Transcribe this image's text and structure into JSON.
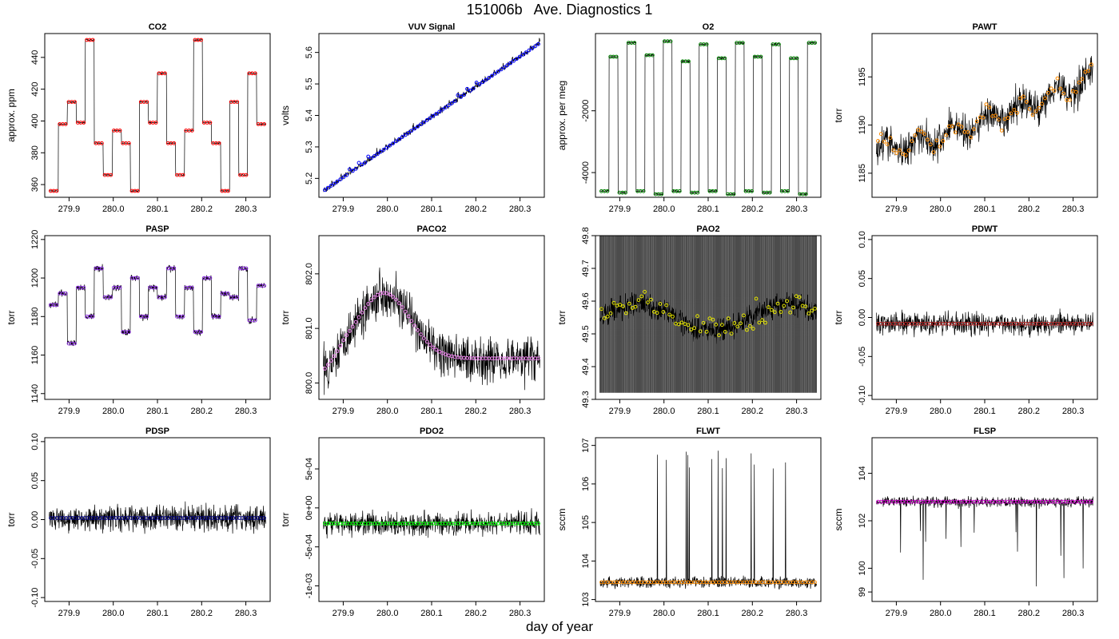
{
  "figure": {
    "title": "151006b   Ave. Diagnostics 1",
    "xlabel": "day of year"
  },
  "chart_data": [
    {
      "type": "line",
      "title": "CO2",
      "ylabel": "approx. ppm",
      "xlim": [
        279.845,
        280.355
      ],
      "ylim": [
        352,
        455
      ],
      "yticks": [
        {
          "v": 360,
          "label": "360"
        },
        {
          "v": 380,
          "label": "380"
        },
        {
          "v": 400,
          "label": "400"
        },
        {
          "v": 420,
          "label": "420"
        },
        {
          "v": 440,
          "label": "440"
        }
      ],
      "xticks": [
        279.9,
        280.0,
        280.1,
        280.2,
        280.3
      ],
      "xticklabels": [
        "279.9",
        "280.0",
        "280.1",
        "280.2",
        "280.3"
      ],
      "marker_color": "#ff0000",
      "pattern": "steps",
      "levels": [
        356,
        398,
        412,
        399,
        451,
        386,
        366,
        394,
        386,
        356,
        412,
        399,
        430,
        386,
        366,
        394,
        451,
        399,
        386,
        356,
        412,
        366,
        430,
        398
      ],
      "noise": 0.3,
      "spikes": 0
    },
    {
      "type": "line",
      "title": "VUV Signal",
      "ylabel": "volts",
      "xlim": [
        279.845,
        280.355
      ],
      "ylim": [
        5.14,
        5.66
      ],
      "yticks": [
        {
          "v": 5.2,
          "label": "5.2"
        },
        {
          "v": 5.3,
          "label": "5.3"
        },
        {
          "v": 5.4,
          "label": "5.4"
        },
        {
          "v": 5.5,
          "label": "5.5"
        },
        {
          "v": 5.6,
          "label": "5.6"
        }
      ],
      "xticks": [
        279.9,
        280.0,
        280.1,
        280.2,
        280.3
      ],
      "xticklabels": [
        "279.9",
        "280.0",
        "280.1",
        "280.2",
        "280.3"
      ],
      "marker_color": "#0000ff",
      "pattern": "linear",
      "start": 5.16,
      "end": 5.63,
      "noise": 0.006,
      "spikes": 0
    },
    {
      "type": "line",
      "title": "O2",
      "ylabel": "approx. per meg",
      "xlim": [
        279.845,
        280.355
      ],
      "ylim": [
        -4800,
        500
      ],
      "yticks": [
        {
          "v": -4000,
          "label": "-4000"
        },
        {
          "v": -2000,
          "label": "-2000"
        }
      ],
      "xticks": [
        279.9,
        280.0,
        280.1,
        280.2,
        280.3
      ],
      "xticklabels": [
        "279.9",
        "280.0",
        "280.1",
        "280.2",
        "280.3"
      ],
      "marker_color": "#008000",
      "pattern": "steps",
      "levels": [
        -4600,
        -250,
        -4650,
        200,
        -4600,
        -200,
        -4700,
        250,
        -4600,
        -400,
        -4650,
        150,
        -4600,
        -300,
        -4700,
        200,
        -4600,
        -250,
        -4650,
        150,
        -4600,
        -300,
        -4700,
        200
      ],
      "noise": 20,
      "spikes": 0
    },
    {
      "type": "line",
      "title": "PAWT",
      "ylabel": "torr",
      "xlim": [
        279.845,
        280.355
      ],
      "ylim": [
        1182.5,
        1199.5
      ],
      "yticks": [
        {
          "v": 1185,
          "label": "1185"
        },
        {
          "v": 1190,
          "label": "1190"
        },
        {
          "v": 1195,
          "label": "1195"
        }
      ],
      "xticks": [
        279.9,
        280.0,
        280.1,
        280.2,
        280.3
      ],
      "xticklabels": [
        "279.9",
        "280.0",
        "280.1",
        "280.2",
        "280.3"
      ],
      "marker_color": "#ff8c00",
      "pattern": "trend",
      "start": 1187.5,
      "end": 1195,
      "noise": 1.3,
      "spikes": 0
    },
    {
      "type": "line",
      "title": "PASP",
      "ylabel": "torr",
      "xlim": [
        279.845,
        280.355
      ],
      "ylim": [
        1137,
        1222
      ],
      "yticks": [
        {
          "v": 1140,
          "label": "1140"
        },
        {
          "v": 1160,
          "label": "1160"
        },
        {
          "v": 1180,
          "label": "1180"
        },
        {
          "v": 1200,
          "label": "1200"
        },
        {
          "v": 1220,
          "label": "1220"
        }
      ],
      "xticks": [
        279.9,
        280.0,
        280.1,
        280.2,
        280.3
      ],
      "xticklabels": [
        "279.9",
        "280.0",
        "280.1",
        "280.2",
        "280.3"
      ],
      "marker_color": "#8a2be2",
      "pattern": "steps",
      "levels": [
        1186,
        1192,
        1166,
        1195,
        1180,
        1205,
        1190,
        1195,
        1172,
        1200,
        1180,
        1195,
        1190,
        1205,
        1180,
        1195,
        1172,
        1200,
        1180,
        1192,
        1190,
        1205,
        1178,
        1196
      ],
      "noise": 1.2,
      "spikes": 0
    },
    {
      "type": "line",
      "title": "PACO2",
      "ylabel": "torr",
      "xlim": [
        279.845,
        280.355
      ],
      "ylim": [
        799.7,
        802.7
      ],
      "yticks": [
        {
          "v": 800,
          "label": "800.0"
        },
        {
          "v": 801,
          "label": "801.0"
        },
        {
          "v": 802,
          "label": "802.0"
        }
      ],
      "xticks": [
        279.9,
        280.0,
        280.1,
        280.2,
        280.3
      ],
      "xticklabels": [
        "279.9",
        "280.0",
        "280.1",
        "280.2",
        "280.3"
      ],
      "marker_color": "#ee82ee",
      "pattern": "hump",
      "noise": 0.3,
      "spikes": 0
    },
    {
      "type": "line",
      "title": "PAO2",
      "ylabel": "torr",
      "xlim": [
        279.845,
        280.355
      ],
      "ylim": [
        49.3,
        49.8
      ],
      "yticks": [
        {
          "v": 49.3,
          "label": "49.3"
        },
        {
          "v": 49.4,
          "label": "49.4"
        },
        {
          "v": 49.5,
          "label": "49.5"
        },
        {
          "v": 49.6,
          "label": "49.6"
        },
        {
          "v": 49.7,
          "label": "49.7"
        },
        {
          "v": 49.8,
          "label": "49.8"
        }
      ],
      "xticks": [
        279.9,
        280.0,
        280.1,
        280.2,
        280.3
      ],
      "xticklabels": [
        "279.9",
        "280.0",
        "280.1",
        "280.2",
        "280.3"
      ],
      "marker_color": "#e6e600",
      "pattern": "block",
      "band": [
        49.32,
        49.8
      ],
      "noise": 0.025,
      "spikes": 0
    },
    {
      "type": "line",
      "title": "PDWT",
      "ylabel": "torr",
      "xlim": [
        279.845,
        280.355
      ],
      "ylim": [
        -0.105,
        0.105
      ],
      "yticks": [
        {
          "v": -0.1,
          "label": "-0.10"
        },
        {
          "v": -0.05,
          "label": "-0.05"
        },
        {
          "v": 0,
          "label": "0.00"
        },
        {
          "v": 0.05,
          "label": "0.05"
        },
        {
          "v": 0.1,
          "label": "0.10"
        }
      ],
      "xticks": [
        279.9,
        280.0,
        280.1,
        280.2,
        280.3
      ],
      "xticklabels": [
        "279.9",
        "280.0",
        "280.1",
        "280.2",
        "280.3"
      ],
      "marker_color": "#b22222",
      "pattern": "flat",
      "level": -0.008,
      "noise": 0.01,
      "spikes": 0
    },
    {
      "type": "line",
      "title": "PDSP",
      "ylabel": "torr",
      "xlim": [
        279.845,
        280.355
      ],
      "ylim": [
        -0.105,
        0.105
      ],
      "yticks": [
        {
          "v": -0.1,
          "label": "-0.10"
        },
        {
          "v": -0.05,
          "label": "-0.05"
        },
        {
          "v": 0,
          "label": "0.00"
        },
        {
          "v": 0.05,
          "label": "0.05"
        },
        {
          "v": 0.1,
          "label": "0.10"
        }
      ],
      "xticks": [
        279.9,
        280.0,
        280.1,
        280.2,
        280.3
      ],
      "xticklabels": [
        "279.9",
        "280.0",
        "280.1",
        "280.2",
        "280.3"
      ],
      "marker_color": "#000080",
      "pattern": "flat",
      "level": 0.002,
      "noise": 0.012,
      "spikes": 0
    },
    {
      "type": "line",
      "title": "PDO2",
      "ylabel": "torr",
      "xlim": [
        279.845,
        280.355
      ],
      "ylim": [
        -0.0012,
        0.0009
      ],
      "yticks": [
        {
          "v": -0.001,
          "label": "-1e-03"
        },
        {
          "v": -0.0005,
          "label": "-5e-04"
        },
        {
          "v": 0,
          "label": "0e+00"
        },
        {
          "v": 0.0005,
          "label": "5e-04"
        }
      ],
      "xticks": [
        279.9,
        280.0,
        280.1,
        280.2,
        280.3
      ],
      "xticklabels": [
        "279.9",
        "280.0",
        "280.1",
        "280.2",
        "280.3"
      ],
      "marker_color": "#00ff00",
      "pattern": "flat",
      "level": -0.0002,
      "noise": 0.0001,
      "spikes": 0
    },
    {
      "type": "line",
      "title": "FLWT",
      "ylabel": "sccm",
      "xlim": [
        279.845,
        280.355
      ],
      "ylim": [
        102.95,
        107.2
      ],
      "yticks": [
        {
          "v": 103,
          "label": "103"
        },
        {
          "v": 104,
          "label": "104"
        },
        {
          "v": 105,
          "label": "105"
        },
        {
          "v": 106,
          "label": "106"
        },
        {
          "v": 107,
          "label": "107"
        }
      ],
      "xticks": [
        279.9,
        280.0,
        280.1,
        280.2,
        280.3
      ],
      "xticklabels": [
        "279.9",
        "280.0",
        "280.1",
        "280.2",
        "280.3"
      ],
      "marker_color": "#ff8c00",
      "pattern": "flat",
      "level": 103.45,
      "noise": 0.1,
      "spikes": 12
    },
    {
      "type": "line",
      "title": "FLSP",
      "ylabel": "sccm",
      "xlim": [
        279.845,
        280.355
      ],
      "ylim": [
        98.6,
        105.5
      ],
      "yticks": [
        {
          "v": 99,
          "label": "99"
        },
        {
          "v": 100,
          "label": "100"
        },
        {
          "v": 102,
          "label": "102"
        },
        {
          "v": 104,
          "label": "104"
        }
      ],
      "xticks": [
        279.9,
        280.0,
        280.1,
        280.2,
        280.3
      ],
      "xticklabels": [
        "279.9",
        "280.0",
        "280.1",
        "280.2",
        "280.3"
      ],
      "marker_color": "#cc00cc",
      "pattern": "flat",
      "level": 102.8,
      "noise": 0.15,
      "spikes": 14
    }
  ]
}
